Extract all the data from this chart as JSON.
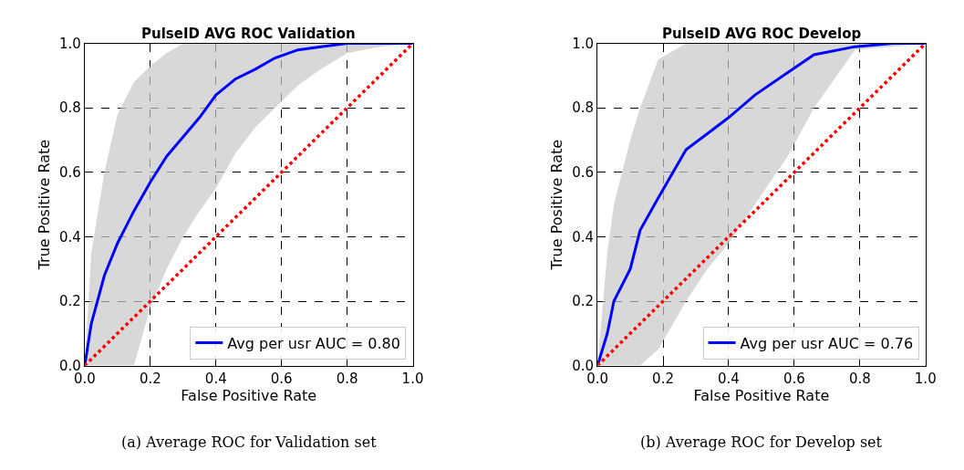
{
  "chart_data": [
    {
      "type": "line",
      "title": "PulseID AVG ROC Validation",
      "xlabel": "False Positive Rate",
      "ylabel": "True Positive Rate",
      "xlim": [
        0,
        1
      ],
      "ylim": [
        0,
        1
      ],
      "xticks": [
        {
          "value": 0,
          "label": "0.0"
        },
        {
          "value": 0.2,
          "label": "0.2"
        },
        {
          "value": 0.4,
          "label": "0.4"
        },
        {
          "value": 0.6,
          "label": "0.6"
        },
        {
          "value": 0.8,
          "label": "0.8"
        },
        {
          "value": 1,
          "label": "1.0"
        }
      ],
      "yticks": [
        {
          "value": 0,
          "label": "0.0"
        },
        {
          "value": 0.2,
          "label": "0.2"
        },
        {
          "value": 0.4,
          "label": "0.4"
        },
        {
          "value": 0.6,
          "label": "0.6"
        },
        {
          "value": 0.8,
          "label": "0.8"
        },
        {
          "value": 1,
          "label": "1.0"
        }
      ],
      "grid": true,
      "legend": "bottom right",
      "series": [
        {
          "name": "Avg per usr AUC = 0.80",
          "color": "#0000ff",
          "line_style": "solid",
          "x": [
            0,
            0.02,
            0.06,
            0.1,
            0.15,
            0.2,
            0.25,
            0.3,
            0.35,
            0.4,
            0.46,
            0.52,
            0.58,
            0.65,
            0.72,
            0.8,
            0.9,
            1
          ],
          "values": [
            0,
            0.13,
            0.28,
            0.38,
            0.48,
            0.57,
            0.65,
            0.71,
            0.77,
            0.84,
            0.89,
            0.92,
            0.955,
            0.98,
            0.99,
            1,
            1,
            1
          ],
          "lower": [
            0,
            0,
            0,
            0,
            0,
            0.18,
            0.3,
            0.4,
            0.48,
            0.55,
            0.66,
            0.74,
            0.8,
            0.87,
            0.92,
            0.97,
            0.99,
            1
          ],
          "upper": [
            0,
            0.35,
            0.6,
            0.78,
            0.88,
            0.93,
            0.97,
            1,
            1,
            1,
            1,
            1,
            1,
            1,
            1,
            1,
            1,
            1
          ]
        },
        {
          "color": "#ff0000",
          "line_style": "dotted",
          "x": [
            0,
            1
          ],
          "values": [
            0,
            1
          ]
        }
      ],
      "annotations": [
        "(a) Average ROC for Validation set"
      ]
    },
    {
      "type": "line",
      "title": "PulseID AVG ROC Develop",
      "xlabel": "False Positive Rate",
      "ylabel": "True Positive Rate",
      "xlim": [
        0,
        1
      ],
      "ylim": [
        0,
        1
      ],
      "xticks": [
        {
          "value": 0,
          "label": "0.0"
        },
        {
          "value": 0.2,
          "label": "0.2"
        },
        {
          "value": 0.4,
          "label": "0.4"
        },
        {
          "value": 0.6,
          "label": "0.6"
        },
        {
          "value": 0.8,
          "label": "0.8"
        },
        {
          "value": 1,
          "label": "1.0"
        }
      ],
      "yticks": [
        {
          "value": 0,
          "label": "0.0"
        },
        {
          "value": 0.2,
          "label": "0.2"
        },
        {
          "value": 0.4,
          "label": "0.4"
        },
        {
          "value": 0.6,
          "label": "0.6"
        },
        {
          "value": 0.8,
          "label": "0.8"
        },
        {
          "value": 1,
          "label": "1.0"
        }
      ],
      "grid": true,
      "legend": "bottom right",
      "series": [
        {
          "name": "Avg per usr AUC = 0.76",
          "color": "#0000ff",
          "line_style": "solid",
          "x": [
            0,
            0.03,
            0.05,
            0.1,
            0.13,
            0.185,
            0.27,
            0.335,
            0.4,
            0.48,
            0.58,
            0.66,
            0.785,
            0.9,
            1
          ],
          "values": [
            0,
            0.1,
            0.2,
            0.3,
            0.42,
            0.52,
            0.67,
            0.72,
            0.77,
            0.84,
            0.91,
            0.965,
            0.99,
            1,
            1
          ],
          "lower": [
            0,
            0,
            0,
            0,
            0,
            0.05,
            0.2,
            0.3,
            0.38,
            0.5,
            0.65,
            0.8,
            0.98,
            0.99,
            1
          ],
          "upper": [
            0,
            0.35,
            0.5,
            0.7,
            0.8,
            0.95,
            1,
            1,
            1,
            1,
            1,
            1,
            1,
            1,
            1
          ]
        },
        {
          "color": "#ff0000",
          "line_style": "dotted",
          "x": [
            0,
            1
          ],
          "values": [
            0,
            1
          ]
        }
      ],
      "annotations": [
        "(b) Average ROC for Develop set"
      ]
    }
  ]
}
